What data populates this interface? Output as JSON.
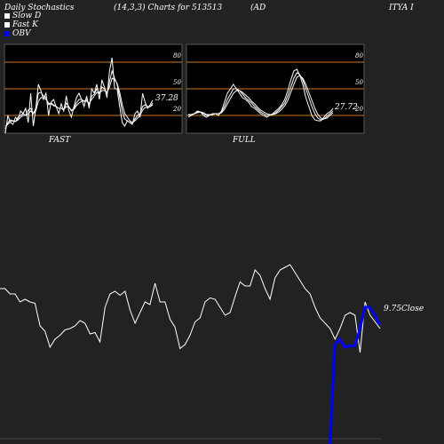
{
  "header": {
    "left": "Daily Stochastics",
    "mid": "(14,3,3) Charts for 513513",
    "ticker_a": "(AD",
    "ticker_b": "ITYA I"
  },
  "legend": [
    {
      "label": "Slow  D",
      "color": "#ffffff"
    },
    {
      "label": "Fast K",
      "color": "#ffffff"
    },
    {
      "label": "OBV",
      "color": "#0000ff"
    }
  ],
  "colors": {
    "background": "#222222",
    "panel": "#000000",
    "level_line": "#cc7722",
    "line": "#ffffff",
    "obv": "#0000ff"
  },
  "chart_data": [
    {
      "type": "line",
      "title": "FAST",
      "ylim": [
        0,
        100
      ],
      "levels": [
        20,
        50,
        80
      ],
      "level_labels": [
        "80",
        "50",
        "20"
      ],
      "last_value_label": "37.28",
      "series": [
        {
          "values": [
            0,
            20,
            12,
            10,
            18,
            15,
            25,
            22,
            28,
            12,
            45,
            8,
            28,
            55,
            48,
            38,
            45,
            20,
            35,
            38,
            30,
            22,
            33,
            25,
            42,
            25,
            18,
            30,
            40,
            45,
            38,
            30,
            42,
            28,
            50,
            45,
            55,
            38,
            60,
            52,
            40,
            70,
            85,
            50,
            50,
            30,
            12,
            8,
            14,
            12,
            10,
            22,
            25,
            18,
            45,
            35,
            28,
            32,
            37.28
          ]
        },
        {
          "values": [
            5,
            12,
            15,
            14,
            13,
            18,
            20,
            22,
            20,
            26,
            28,
            22,
            28,
            45,
            46,
            42,
            40,
            32,
            34,
            32,
            30,
            28,
            28,
            26,
            34,
            30,
            25,
            28,
            34,
            38,
            38,
            36,
            38,
            32,
            42,
            44,
            50,
            45,
            52,
            50,
            45,
            58,
            70,
            62,
            55,
            40,
            25,
            16,
            14,
            12,
            12,
            16,
            20,
            22,
            30,
            32,
            30,
            30,
            34
          ]
        },
        {
          "values": [
            8,
            10,
            13,
            14,
            13,
            15,
            18,
            20,
            20,
            22,
            25,
            22,
            25,
            36,
            40,
            40,
            38,
            34,
            33,
            31,
            30,
            28,
            28,
            27,
            30,
            29,
            26,
            27,
            31,
            34,
            36,
            36,
            36,
            34,
            38,
            42,
            46,
            45,
            48,
            48,
            46,
            52,
            62,
            60,
            56,
            46,
            32,
            22,
            18,
            14,
            12,
            14,
            17,
            20,
            26,
            29,
            29,
            30,
            32
          ]
        }
      ]
    },
    {
      "type": "line",
      "title": "FULL",
      "ylim": [
        0,
        100
      ],
      "levels": [
        20,
        50,
        80
      ],
      "level_labels": [
        "80",
        "50",
        "20"
      ],
      "last_value_label": "27.72",
      "series": [
        {
          "values": [
            18,
            20,
            22,
            25,
            24,
            20,
            18,
            20,
            22,
            22,
            20,
            25,
            35,
            45,
            50,
            55,
            50,
            45,
            40,
            38,
            35,
            30,
            28,
            25,
            22,
            20,
            18,
            20,
            22,
            25,
            28,
            32,
            38,
            48,
            60,
            70,
            72,
            65,
            55,
            40,
            30,
            20,
            15,
            14,
            14,
            18,
            22,
            24,
            27.72
          ]
        },
        {
          "values": [
            20,
            21,
            22,
            24,
            24,
            22,
            20,
            20,
            21,
            22,
            22,
            24,
            30,
            38,
            44,
            50,
            50,
            48,
            44,
            40,
            37,
            34,
            30,
            27,
            24,
            22,
            20,
            20,
            21,
            23,
            26,
            30,
            34,
            42,
            52,
            62,
            68,
            66,
            60,
            50,
            40,
            30,
            22,
            17,
            15,
            16,
            19,
            22,
            25
          ]
        },
        {
          "values": [
            21,
            21,
            22,
            23,
            24,
            23,
            21,
            21,
            21,
            22,
            22,
            23,
            27,
            33,
            39,
            45,
            48,
            48,
            46,
            43,
            40,
            36,
            33,
            29,
            26,
            24,
            22,
            21,
            21,
            22,
            24,
            27,
            31,
            37,
            46,
            55,
            63,
            65,
            62,
            55,
            46,
            37,
            28,
            21,
            17,
            16,
            17,
            20,
            23
          ]
        }
      ]
    },
    {
      "type": "line",
      "last_value_label": "9.75",
      "value_caption": "Close",
      "series": [
        {
          "values": [
            2.0,
            2.0,
            1.6,
            1.6,
            1.0,
            1.2,
            1.0,
            0.9,
            -0.8,
            -1.2,
            -2.4,
            -1.8,
            -1.5,
            -1.1,
            -1.0,
            -0.8,
            -0.4,
            -0.6,
            -1.4,
            -1.3,
            -2.0,
            0.6,
            1.6,
            1.8,
            1.5,
            1.8,
            0.4,
            -0.6,
            0.2,
            1.0,
            0.8,
            2.4,
            1.0,
            1.0,
            -0.3,
            -0.9,
            -2.5,
            -2.2,
            -1.5,
            -0.5,
            -0.2,
            1.0,
            1.3,
            1.2,
            0.6,
            0.0,
            0.2,
            1.4,
            2.5,
            2.2,
            2.2,
            3.4,
            3.0,
            2.0,
            1.2,
            2.8,
            3.4,
            3.6,
            3.8,
            3.2,
            2.6,
            2.0,
            1.6,
            0.6,
            -0.2,
            -0.6,
            -1.0,
            -1.8,
            -1.0,
            0.0,
            0.2,
            0.0,
            -2.8,
            1.0,
            0.0,
            -0.5,
            -1.0
          ]
        },
        {
          "name": "OBV",
          "values": [
            null,
            null,
            null,
            null,
            null,
            null,
            null,
            null,
            null,
            null,
            null,
            null,
            null,
            null,
            null,
            null,
            null,
            null,
            null,
            null,
            null,
            null,
            null,
            null,
            null,
            null,
            null,
            null,
            null,
            null,
            null,
            null,
            null,
            null,
            null,
            null,
            -10.0,
            -10.0,
            -10.0,
            -10.0,
            -9.9,
            -9.8,
            -9.9,
            -10.0,
            null,
            null,
            null,
            null,
            null,
            null,
            null,
            null,
            null,
            null,
            null,
            -10.0,
            -10.0,
            -10.0,
            -10.0,
            -10.0,
            -10.0,
            -10.0,
            -10.0,
            -10.0,
            -10.0,
            -10.0,
            -10.0,
            -2.2,
            -1.8,
            -2.4,
            -2.3,
            -2.3,
            -1.0,
            0.6,
            0.6,
            0.0,
            -0.7
          ]
        }
      ]
    }
  ]
}
